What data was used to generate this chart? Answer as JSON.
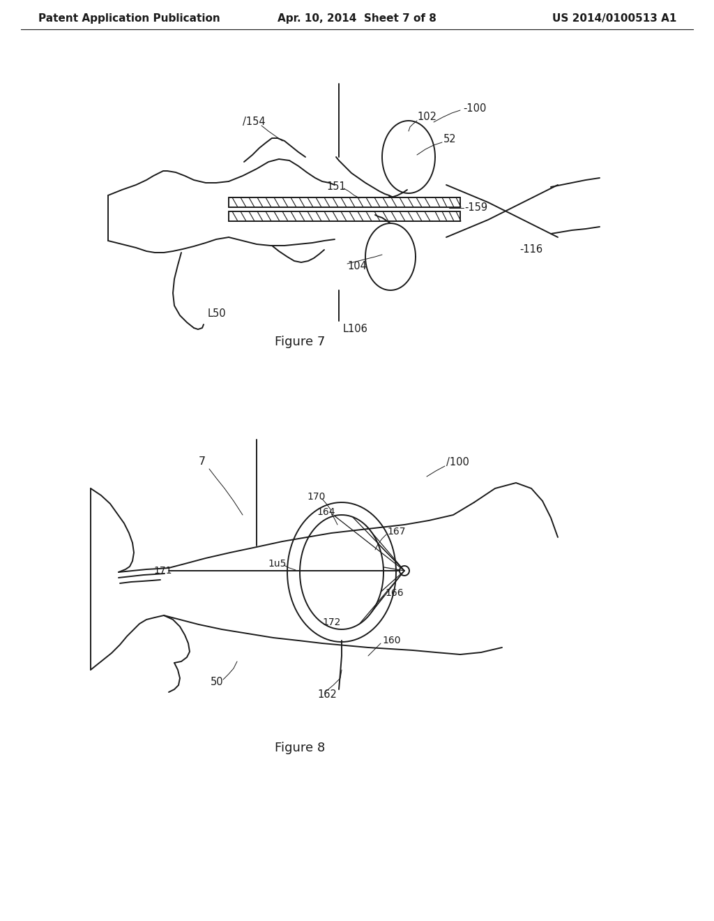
{
  "background_color": "#ffffff",
  "header_left": "Patent Application Publication",
  "header_center": "Apr. 10, 2014  Sheet 7 of 8",
  "header_right": "US 2014/0100513 A1",
  "figure7_caption": "Figure 7",
  "figure8_caption": "Figure 8",
  "line_color": "#1a1a1a",
  "text_color": "#1a1a1a",
  "header_fontsize": 11,
  "caption_fontsize": 13,
  "label_fontsize": 10.5
}
